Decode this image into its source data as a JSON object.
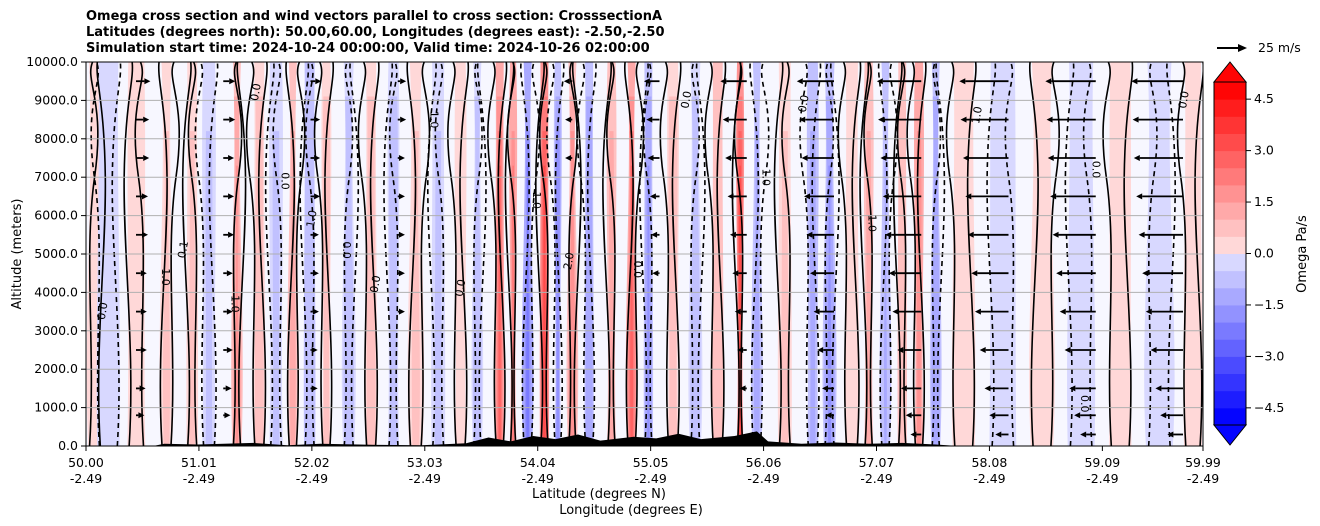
{
  "chart_data": {
    "type": "contour",
    "title_lines": [
      "Omega cross section and wind vectors parallel to cross section: CrosssectionA",
      "Latitudes (degrees north): 50.00,60.00, Longitudes (degrees east): -2.50,-2.50",
      "Simulation start time: 2024-10-24 00:00:00, Valid time: 2024-10-26 02:00:00"
    ],
    "xlabel_lines": [
      "Latitude (degrees N)",
      "Longitude (degrees E)"
    ],
    "ylabel": "Altitude (meters)",
    "xlim": [
      50.0,
      59.99
    ],
    "ylim": [
      0,
      10000
    ],
    "x_ticks": [
      {
        "lat": "50.00",
        "lon": "-2.49",
        "v": 50.0
      },
      {
        "lat": "51.01",
        "lon": "-2.49",
        "v": 51.01
      },
      {
        "lat": "52.02",
        "lon": "-2.49",
        "v": 52.02
      },
      {
        "lat": "53.03",
        "lon": "-2.49",
        "v": 53.03
      },
      {
        "lat": "54.04",
        "lon": "-2.49",
        "v": 54.04
      },
      {
        "lat": "55.05",
        "lon": "-2.49",
        "v": 55.05
      },
      {
        "lat": "56.06",
        "lon": "-2.49",
        "v": 56.06
      },
      {
        "lat": "57.07",
        "lon": "-2.49",
        "v": 57.07
      },
      {
        "lat": "58.08",
        "lon": "-2.49",
        "v": 58.08
      },
      {
        "lat": "59.09",
        "lon": "-2.49",
        "v": 59.09
      },
      {
        "lat": "59.99",
        "lon": "-2.49",
        "v": 59.99
      }
    ],
    "y_ticks": [
      {
        "label": "0.0",
        "v": 0
      },
      {
        "label": "1000.0",
        "v": 1000
      },
      {
        "label": "2000.0",
        "v": 2000
      },
      {
        "label": "3000.0",
        "v": 3000
      },
      {
        "label": "4000.0",
        "v": 4000
      },
      {
        "label": "5000.0",
        "v": 5000
      },
      {
        "label": "6000.0",
        "v": 6000
      },
      {
        "label": "7000.0",
        "v": 7000
      },
      {
        "label": "8000.0",
        "v": 8000
      },
      {
        "label": "9000.0",
        "v": 9000
      },
      {
        "label": "10000.0",
        "v": 10000
      }
    ],
    "grid": "horizontal",
    "colorbar": {
      "label": "Omega Pa/s",
      "range": [
        -5.0,
        5.0
      ],
      "levels_step": 0.5,
      "extend": "both",
      "ticks": [
        {
          "label": "4.5",
          "v": 4.5
        },
        {
          "label": "3.0",
          "v": 3.0
        },
        {
          "label": "1.5",
          "v": 1.5
        },
        {
          "label": "0.0",
          "v": 0.0
        },
        {
          "label": "−1.5",
          "v": -1.5
        },
        {
          "label": "−3.0",
          "v": -3.0
        },
        {
          "label": "−4.5",
          "v": -4.5
        }
      ],
      "colors": {
        "max": "#ff0000",
        "zero": "#ffffff",
        "min": "#0000ff"
      }
    },
    "quiver_key": {
      "label": "25 m/s",
      "speed_ms": 25
    },
    "omega_bands": [
      {
        "x": 50.08,
        "w": 0.06,
        "v": 0.5
      },
      {
        "x": 50.2,
        "w": 0.1,
        "v": -0.3
      },
      {
        "x": 50.45,
        "w": 0.08,
        "v": 0.4
      },
      {
        "x": 50.72,
        "w": 0.05,
        "v": 0.6
      },
      {
        "x": 50.95,
        "w": 0.05,
        "v": 0.7
      },
      {
        "x": 51.1,
        "w": 0.06,
        "v": -0.7
      },
      {
        "x": 51.35,
        "w": 0.04,
        "v": 1.6
      },
      {
        "x": 51.55,
        "w": 0.05,
        "v": 0.8
      },
      {
        "x": 51.7,
        "w": 0.06,
        "v": -0.6
      },
      {
        "x": 51.85,
        "w": 0.04,
        "v": 1.3
      },
      {
        "x": 52.0,
        "w": 0.05,
        "v": -1.0
      },
      {
        "x": 52.15,
        "w": 0.04,
        "v": 0.9
      },
      {
        "x": 52.35,
        "w": 0.05,
        "v": -0.8
      },
      {
        "x": 52.55,
        "w": 0.05,
        "v": 0.8
      },
      {
        "x": 52.75,
        "w": 0.05,
        "v": -0.9
      },
      {
        "x": 52.95,
        "w": 0.06,
        "v": 0.7
      },
      {
        "x": 53.15,
        "w": 0.06,
        "v": -0.6
      },
      {
        "x": 53.35,
        "w": 0.05,
        "v": 0.5
      },
      {
        "x": 53.5,
        "w": 0.04,
        "v": -0.9
      },
      {
        "x": 53.7,
        "w": 0.04,
        "v": 2.6
      },
      {
        "x": 53.82,
        "w": 0.03,
        "v": 2.2
      },
      {
        "x": 53.95,
        "w": 0.04,
        "v": -2.2
      },
      {
        "x": 54.1,
        "w": 0.04,
        "v": 3.2
      },
      {
        "x": 54.22,
        "w": 0.03,
        "v": -1.8
      },
      {
        "x": 54.35,
        "w": 0.04,
        "v": 1.8
      },
      {
        "x": 54.5,
        "w": 0.04,
        "v": -1.5
      },
      {
        "x": 54.7,
        "w": 0.04,
        "v": 1.2
      },
      {
        "x": 54.88,
        "w": 0.04,
        "v": 2.6
      },
      {
        "x": 55.03,
        "w": 0.04,
        "v": -1.7
      },
      {
        "x": 55.25,
        "w": 0.05,
        "v": 0.9
      },
      {
        "x": 55.45,
        "w": 0.05,
        "v": -0.8
      },
      {
        "x": 55.65,
        "w": 0.05,
        "v": 1.0
      },
      {
        "x": 55.85,
        "w": 0.03,
        "v": 3.2
      },
      {
        "x": 56.0,
        "w": 0.04,
        "v": -1.4
      },
      {
        "x": 56.25,
        "w": 0.06,
        "v": 0.6
      },
      {
        "x": 56.5,
        "w": 0.05,
        "v": -1.2
      },
      {
        "x": 56.65,
        "w": 0.05,
        "v": -1.6
      },
      {
        "x": 56.85,
        "w": 0.06,
        "v": 0.5
      },
      {
        "x": 57.0,
        "w": 0.04,
        "v": 1.4
      },
      {
        "x": 57.15,
        "w": 0.04,
        "v": -1.1
      },
      {
        "x": 57.3,
        "w": 0.04,
        "v": 1.0
      },
      {
        "x": 57.45,
        "w": 0.04,
        "v": 2.0
      },
      {
        "x": 57.6,
        "w": 0.04,
        "v": -1.5
      },
      {
        "x": 57.85,
        "w": 0.1,
        "v": 0.4
      },
      {
        "x": 58.2,
        "w": 0.12,
        "v": -0.4
      },
      {
        "x": 58.55,
        "w": 0.1,
        "v": 0.4
      },
      {
        "x": 58.9,
        "w": 0.12,
        "v": -0.3
      },
      {
        "x": 59.25,
        "w": 0.1,
        "v": 0.4
      },
      {
        "x": 59.6,
        "w": 0.12,
        "v": -0.3
      },
      {
        "x": 59.9,
        "w": 0.08,
        "v": 0.3
      }
    ],
    "contour_labels": [
      {
        "text": "0.0",
        "x": 50.18,
        "y": 3500
      },
      {
        "text": "1.0",
        "x": 50.68,
        "y": 4400
      },
      {
        "text": "0.1",
        "x": 50.9,
        "y": 5100
      },
      {
        "text": "1.0",
        "x": 51.3,
        "y": 3700
      },
      {
        "text": "0.0",
        "x": 51.55,
        "y": 9200
      },
      {
        "text": "0.0",
        "x": 51.75,
        "y": 6900
      },
      {
        "text": "1.0",
        "x": 52.05,
        "y": 5900
      },
      {
        "text": "0.0",
        "x": 52.3,
        "y": 5100
      },
      {
        "text": "0.0",
        "x": 52.62,
        "y": 4200
      },
      {
        "text": "1.0",
        "x": 53.08,
        "y": 8500
      },
      {
        "text": "0.0",
        "x": 53.38,
        "y": 4100
      },
      {
        "text": "1.0",
        "x": 54.0,
        "y": 6400
      },
      {
        "text": "2.0",
        "x": 54.35,
        "y": 4800
      },
      {
        "text": "0.0",
        "x": 54.9,
        "y": 4600
      },
      {
        "text": "0.0",
        "x": 55.4,
        "y": 9000
      },
      {
        "text": "1.0",
        "x": 56.05,
        "y": 7000
      },
      {
        "text": "0.0",
        "x": 56.45,
        "y": 8900
      },
      {
        "text": "1.0",
        "x": 57.0,
        "y": 5800
      },
      {
        "text": "1.0",
        "x": 58.0,
        "y": 8600
      },
      {
        "text": "0.0",
        "x": 59.0,
        "y": 7200
      },
      {
        "text": "0.0",
        "x": 59.85,
        "y": 9000
      },
      {
        "text": "0.0",
        "x": 58.9,
        "y": 1100
      }
    ],
    "wind_rows": [
      {
        "y": 300,
        "u": [
          0.0,
          0.0,
          0.0,
          0.0,
          0.0,
          0.0,
          0.0,
          0.0,
          0.0,
          -0.4,
          -0.6,
          -0.8,
          -0.8
        ]
      },
      {
        "y": 800,
        "u": [
          0.2,
          0.1,
          0.0,
          0.0,
          0.0,
          0.0,
          0.0,
          0.0,
          -0.2,
          -0.8,
          -1.1,
          -1.3,
          -1.4
        ]
      },
      {
        "y": 1500,
        "u": [
          0.3,
          0.2,
          0.1,
          0.0,
          0.0,
          0.0,
          0.0,
          -0.1,
          -0.5,
          -1.2,
          -1.5,
          -1.7,
          -1.8
        ]
      },
      {
        "y": 2500,
        "u": [
          0.4,
          0.3,
          0.1,
          0.0,
          0.0,
          0.0,
          0.0,
          -0.3,
          -0.9,
          -1.5,
          -1.9,
          -2.1,
          -2.2
        ]
      },
      {
        "y": 3500,
        "u": [
          0.4,
          0.3,
          0.2,
          0.1,
          0.0,
          0.0,
          0.0,
          -0.5,
          -1.2,
          -1.9,
          -2.3,
          -2.5,
          -2.6
        ]
      },
      {
        "y": 4500,
        "u": [
          0.4,
          0.3,
          0.2,
          0.1,
          0.0,
          0.0,
          -0.1,
          -0.7,
          -1.5,
          -2.2,
          -2.6,
          -2.8,
          -2.9
        ]
      },
      {
        "y": 5500,
        "u": [
          0.5,
          0.4,
          0.2,
          0.1,
          0.0,
          0.0,
          -0.2,
          -0.9,
          -1.8,
          -2.5,
          -2.9,
          -3.1,
          -3.2
        ]
      },
      {
        "y": 6500,
        "u": [
          0.5,
          0.4,
          0.3,
          0.1,
          0.0,
          0.0,
          -0.3,
          -1.1,
          -2.0,
          -2.7,
          -3.1,
          -3.3,
          -3.4
        ]
      },
      {
        "y": 7500,
        "u": [
          0.6,
          0.4,
          0.3,
          0.1,
          0.0,
          -0.1,
          -0.5,
          -1.3,
          -2.2,
          -2.9,
          -3.3,
          -3.5,
          -3.6
        ]
      },
      {
        "y": 8500,
        "u": [
          0.6,
          0.5,
          0.3,
          0.2,
          0.0,
          -0.1,
          -0.6,
          -1.5,
          -2.4,
          -3.1,
          -3.5,
          -3.6,
          -3.7
        ]
      },
      {
        "y": 9500,
        "u": [
          0.7,
          0.5,
          0.4,
          0.2,
          0.0,
          -0.2,
          -0.8,
          -1.7,
          -2.6,
          -3.2,
          -3.6,
          -3.7,
          -3.8
        ]
      }
    ]
  }
}
